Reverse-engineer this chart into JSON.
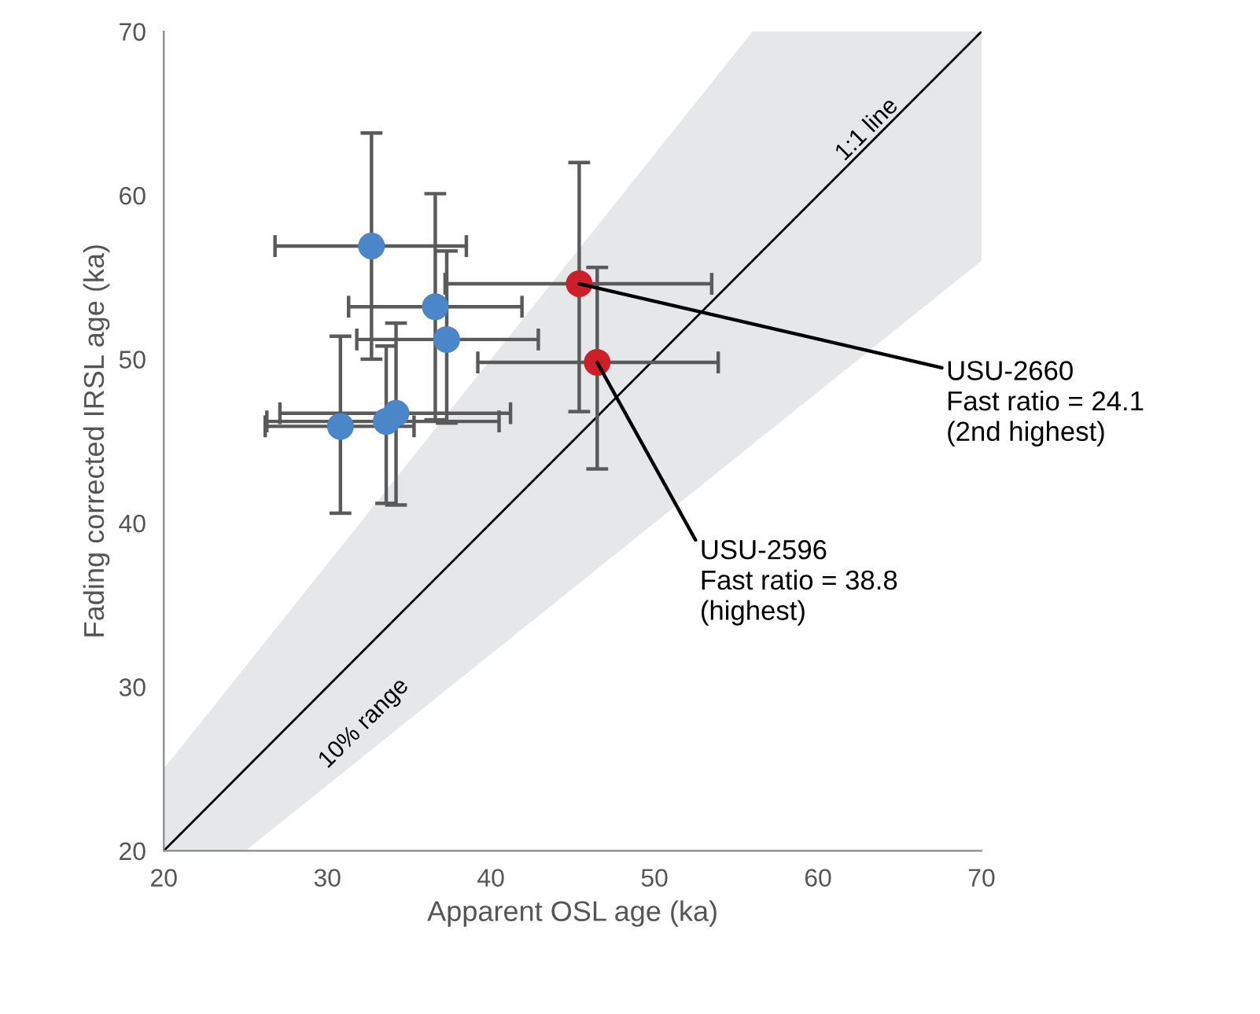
{
  "chart_data": {
    "type": "scatter",
    "xlabel": "Apparent OSL age (ka)",
    "ylabel": "Fading corrected IRSL age (ka)",
    "xlim": [
      20,
      70
    ],
    "ylim": [
      20,
      70
    ],
    "xticks": [
      20,
      30,
      40,
      50,
      60,
      70
    ],
    "yticks": [
      20,
      30,
      40,
      50,
      60,
      70
    ],
    "grid": false,
    "marker": "circle",
    "series": [
      {
        "type": "line",
        "color": "#000000",
        "x": [
          20,
          25,
          56,
          70
        ],
        "values": [
          20,
          25,
          56,
          70
        ],
        "lower": [
          20,
          20,
          44.8,
          56
        ],
        "upper": [
          25,
          31.25,
          70,
          70
        ],
        "marker": "none"
      },
      {
        "color": "#4a86c8",
        "x": [
          32.7,
          36.6,
          37.3,
          30.8,
          33.6,
          34.2
        ],
        "values": [
          56.9,
          53.2,
          51.2,
          45.9,
          46.2,
          46.7
        ],
        "xerrors": [
          [
            26.8,
            38.5
          ],
          [
            31.3,
            41.9
          ],
          [
            31.8,
            42.9
          ],
          [
            26.2,
            35.3
          ],
          [
            26.3,
            40.5
          ],
          [
            27.1,
            41.2
          ]
        ],
        "errors": [
          [
            50.0,
            63.8
          ],
          [
            46.3,
            60.1
          ],
          [
            46.1,
            56.6
          ],
          [
            40.6,
            51.4
          ],
          [
            41.2,
            50.8
          ],
          [
            41.1,
            52.2
          ]
        ]
      },
      {
        "color": "#cc1f2a",
        "x": [
          45.4,
          46.5
        ],
        "values": [
          54.6,
          49.8
        ],
        "xerrors": [
          [
            37.2,
            53.5
          ],
          [
            39.2,
            53.9
          ]
        ],
        "errors": [
          [
            46.8,
            62.0
          ],
          [
            43.3,
            55.6
          ]
        ]
      }
    ],
    "annotations": [
      {
        "text": "1:1 line",
        "x": 63.5,
        "y": 63.5
      },
      "10% range",
      {
        "text": "USU-2660\nFast ratio = 24.1\n(2nd highest)",
        "x": 45.4,
        "y": 54.6
      },
      {
        "text": "USU-2596\nFast ratio = 38.8\n(highest)",
        "x": 46.5,
        "y": 49.8
      }
    ]
  }
}
